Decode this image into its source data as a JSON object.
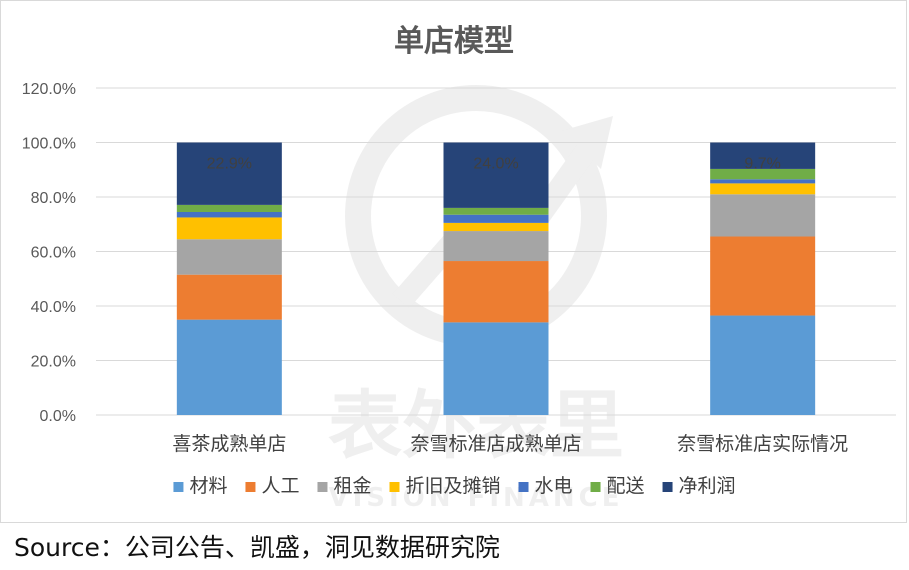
{
  "chart_data": {
    "type": "bar",
    "stacked": true,
    "title": "单店模型",
    "xlabel": "",
    "ylabel": "",
    "ylim": [
      0,
      120
    ],
    "yticks": [
      "0.0%",
      "20.0%",
      "40.0%",
      "60.0%",
      "80.0%",
      "100.0%",
      "120.0%"
    ],
    "ytick_values": [
      0,
      20,
      40,
      60,
      80,
      100,
      120
    ],
    "grid": true,
    "legend_position": "bottom",
    "categories": [
      "喜茶成熟单店",
      "奈雪标准店成熟单店",
      "奈雪标准店实际情况"
    ],
    "series": [
      {
        "name": "材料",
        "color": "#5b9bd5",
        "values": [
          35.0,
          34.0,
          36.5
        ]
      },
      {
        "name": "人工",
        "color": "#ed7d31",
        "values": [
          16.5,
          22.5,
          29.0
        ]
      },
      {
        "name": "租金",
        "color": "#a5a5a5",
        "values": [
          13.0,
          11.0,
          15.5
        ]
      },
      {
        "name": "折旧及摊销",
        "color": "#ffc000",
        "values": [
          8.0,
          3.0,
          4.0
        ]
      },
      {
        "name": "水电",
        "color": "#4472c4",
        "values": [
          2.0,
          3.0,
          1.5
        ]
      },
      {
        "name": "配送",
        "color": "#70ad47",
        "values": [
          2.6,
          2.5,
          3.8
        ]
      },
      {
        "name": "净利润",
        "color": "#264478",
        "values": [
          22.9,
          24.0,
          9.7
        ]
      }
    ],
    "data_labels": [
      "22.9%",
      "24.0%",
      "9.7%"
    ],
    "data_label_series": "净利润"
  },
  "watermark": {
    "text": "表外表里",
    "subtext": "VISION FINANCE"
  },
  "source": "Source：公司公告、凯盛，洞见数据研究院"
}
